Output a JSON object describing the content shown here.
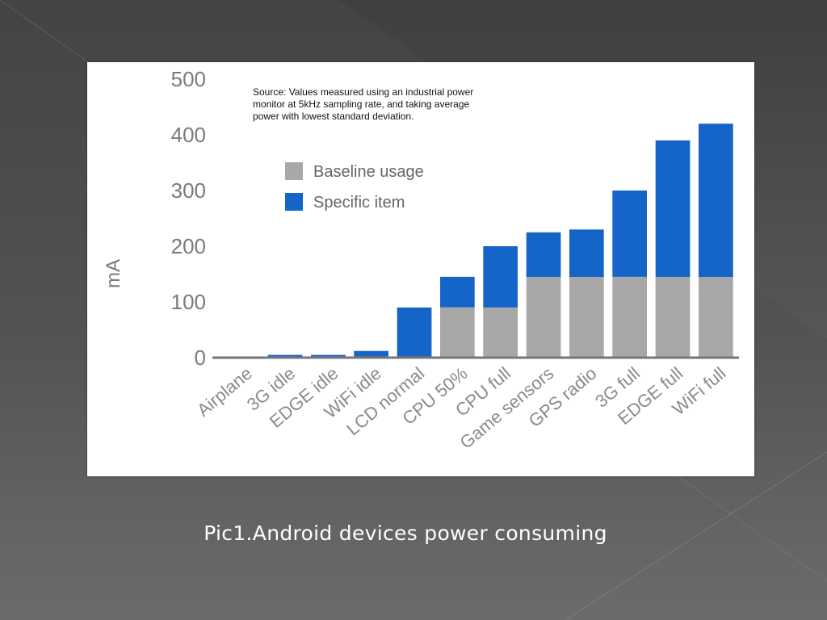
{
  "slide": {
    "caption": "Pic1.Android devices power consuming",
    "background_colors": [
      "#3f3f3f",
      "#7c7c7c"
    ]
  },
  "chart_data": {
    "type": "bar",
    "stacked": true,
    "note": "Source: Values measured using an industrial power monitor at 5kHz sampling rate, and taking average power with lowest standard deviation.",
    "note_lines": [
      "Source: Values measured using an industrial power",
      "monitor at 5kHz sampling rate, and taking average",
      "power with lowest standard deviation."
    ],
    "ylabel": "mA",
    "xlabel": "",
    "ylim": [
      0,
      500
    ],
    "yticks": [
      0,
      100,
      200,
      300,
      400,
      500
    ],
    "grid": false,
    "legend_position": "top-left",
    "categories": [
      "Airplane",
      "3G idle",
      "EDGE idle",
      "WiFi idle",
      "LCD normal",
      "CPU 50%",
      "CPU full",
      "Game sensors",
      "GPS radio",
      "3G full",
      "EDGE full",
      "WiFi full"
    ],
    "series": [
      {
        "name": "Baseline usage",
        "color": "#a8a8a8",
        "values": [
          0,
          0,
          0,
          0,
          0,
          90,
          90,
          145,
          145,
          145,
          145,
          145
        ]
      },
      {
        "name": "Specific item",
        "color": "#1565c8",
        "values": [
          2,
          5,
          5,
          12,
          90,
          55,
          110,
          80,
          85,
          155,
          245,
          275
        ]
      }
    ],
    "axis_color": "#777777",
    "tick_color": "#7a7a7a"
  }
}
